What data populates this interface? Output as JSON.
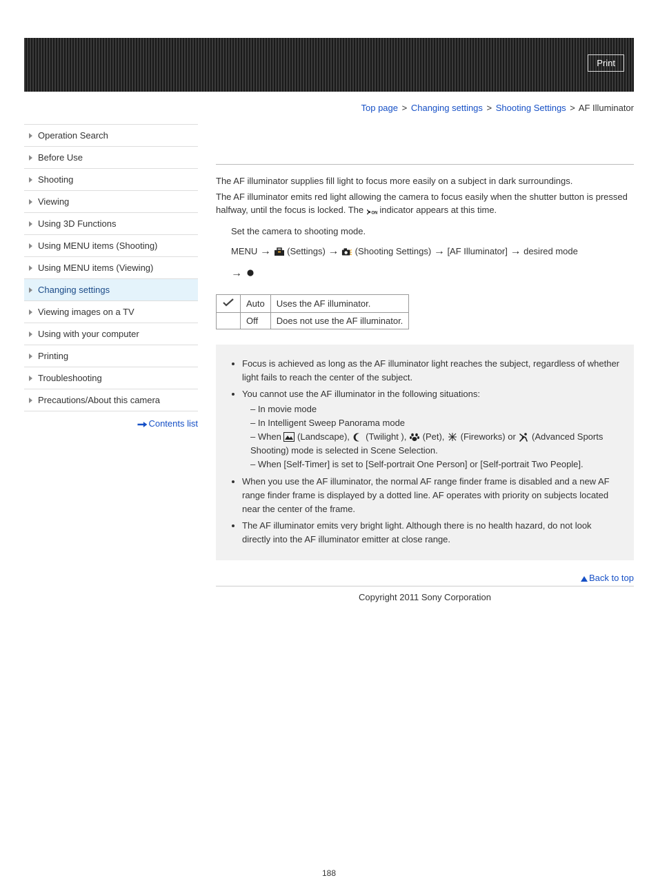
{
  "header": {
    "print_label": "Print"
  },
  "breadcrumb": {
    "top": "Top page",
    "l1": "Changing settings",
    "l2": "Shooting Settings",
    "current": "AF Illuminator",
    "sep": ">"
  },
  "sidebar": {
    "items": [
      {
        "label": "Operation Search",
        "active": false
      },
      {
        "label": "Before Use",
        "active": false
      },
      {
        "label": "Shooting",
        "active": false
      },
      {
        "label": "Viewing",
        "active": false
      },
      {
        "label": "Using 3D Functions",
        "active": false
      },
      {
        "label": "Using MENU items (Shooting)",
        "active": false
      },
      {
        "label": "Using MENU items (Viewing)",
        "active": false
      },
      {
        "label": "Changing settings",
        "active": true
      },
      {
        "label": "Viewing images on a TV",
        "active": false
      },
      {
        "label": "Using with your computer",
        "active": false
      },
      {
        "label": "Printing",
        "active": false
      },
      {
        "label": "Troubleshooting",
        "active": false
      },
      {
        "label": "Precautions/About this camera",
        "active": false
      }
    ],
    "contents_link": "Contents list"
  },
  "main": {
    "intro_p1": "The AF illuminator supplies fill light to focus more easily on a subject in dark surroundings.",
    "intro_p2_a": "The AF illuminator emits red light allowing the camera to focus easily when the shutter button is pressed halfway, until the focus is locked. The ",
    "intro_p2_icon_label": "ON",
    "intro_p2_b": " indicator appears at this time.",
    "step1": "Set the camera to shooting mode.",
    "step2_menu": "MENU",
    "step2_settings": " (Settings) ",
    "step2_shoot": " (Shooting Settings) ",
    "step2_af": " [AF Illuminator] ",
    "step2_desired": " desired mode ",
    "table": {
      "rows": [
        {
          "check": true,
          "mode": "Auto",
          "desc": "Uses the AF illuminator."
        },
        {
          "check": false,
          "mode": "Off",
          "desc": "Does not use the AF illuminator."
        }
      ]
    },
    "notes": {
      "n1": "Focus is achieved as long as the AF illuminator light reaches the subject, regardless of whether light fails to reach the center of the subject.",
      "n2": "You cannot use the AF illuminator in the following situations:",
      "n2a": "In movie mode",
      "n2b": "In Intelligent Sweep Panorama mode",
      "n2c_pre": "When ",
      "n2c_land": " (Landscape), ",
      "n2c_twi": " (Twilight ), ",
      "n2c_pet": " (Pet), ",
      "n2c_fire": " (Fireworks) or ",
      "n2c_sport": " (Advanced Sports Shooting) mode is selected in Scene Selection.",
      "n2d": "When [Self-Timer] is set to [Self-portrait One Person] or [Self-portrait Two People].",
      "n3": "When you use the AF illuminator, the normal AF range finder frame is disabled and a new AF range finder frame is displayed by a dotted line. AF operates with priority on subjects located near the center of the frame.",
      "n4": "The AF illuminator emits very bright light. Although there is no health hazard, do not look directly into the AF illuminator emitter at close range."
    }
  },
  "footer": {
    "back_top": "Back to top",
    "copyright": "Copyright 2011 Sony Corporation",
    "page_number": "188"
  },
  "colors": {
    "link": "#1650c6",
    "sidebar_active_bg": "#e4f3fb",
    "notes_bg": "#f1f1f1"
  }
}
